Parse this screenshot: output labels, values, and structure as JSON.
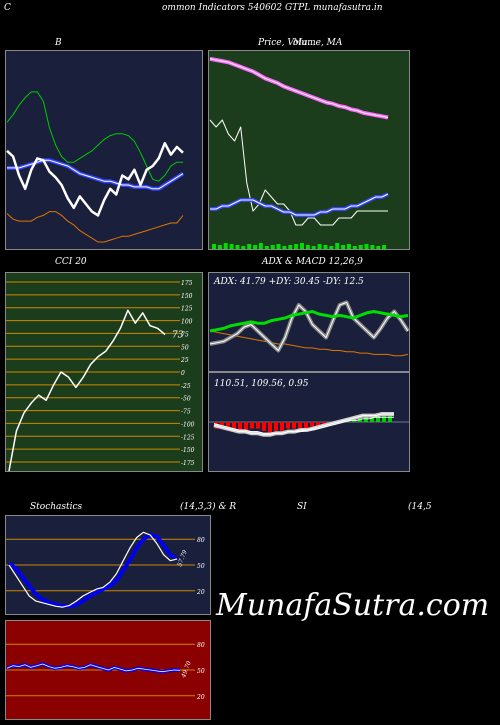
{
  "header": {
    "left": "C",
    "title": "ommon  Indicators 540602  GTPL  munafasutra.in"
  },
  "watermark": "MunafaSutra.com",
  "chart_data": [
    {
      "id": "bollinger",
      "type": "line",
      "title": "B",
      "series": [
        {
          "color": "#00cc00",
          "values": [
            63,
            67,
            72,
            76,
            79,
            79,
            74,
            60,
            51,
            45,
            42,
            42,
            44,
            46,
            48,
            51,
            54,
            56,
            57,
            57,
            56,
            53,
            47,
            40,
            33,
            32,
            35,
            40,
            42,
            42
          ]
        },
        {
          "color": "#ffffff",
          "values": [
            48,
            45,
            35,
            28,
            38,
            44,
            43,
            37,
            34,
            30,
            23,
            18,
            24,
            20,
            16,
            14,
            22,
            28,
            25,
            35,
            33,
            38,
            30,
            38,
            40,
            44,
            52,
            46,
            50,
            47
          ]
        },
        {
          "color": "#3344ff",
          "values": [
            39,
            39,
            39,
            40,
            41,
            42,
            43,
            43,
            42,
            41,
            40,
            38,
            36,
            35,
            34,
            33,
            32,
            32,
            31,
            30,
            30,
            29,
            29,
            29,
            28,
            28,
            30,
            32,
            34,
            36
          ]
        },
        {
          "color": "#dd7700",
          "values": [
            15,
            12,
            11,
            11,
            11,
            13,
            14,
            16,
            16,
            14,
            11,
            9,
            6,
            4,
            2,
            0,
            0,
            1,
            2,
            3,
            3,
            4,
            5,
            6,
            7,
            8,
            9,
            10,
            10,
            14
          ]
        }
      ]
    },
    {
      "id": "price_ma",
      "type": "line",
      "title": "Price,  Volume,  MA",
      "overlay_title": "Ma...",
      "series": [
        {
          "color": "#ff66ff",
          "values": [
            88,
            87,
            86,
            85,
            83,
            81,
            79,
            77,
            74,
            71,
            69,
            67,
            64,
            62,
            60,
            58,
            56,
            54,
            52,
            50,
            49,
            47,
            46,
            44,
            43,
            41,
            40,
            39,
            38,
            37
          ]
        },
        {
          "color": "#ffffff",
          "values": [
            15,
            14,
            15,
            13,
            12,
            14,
            6,
            2,
            3,
            5,
            4,
            3,
            3,
            2,
            0,
            0,
            1,
            1,
            0,
            0,
            0,
            1,
            1,
            1,
            2,
            2,
            2,
            2,
            2,
            2
          ]
        },
        {
          "color": "#3344ff",
          "values": [
            2,
            2,
            3,
            3,
            4,
            5,
            5,
            5,
            4,
            3,
            3,
            2,
            1,
            1,
            0,
            0,
            0,
            0,
            1,
            1,
            2,
            2,
            2,
            3,
            3,
            4,
            5,
            6,
            6,
            7
          ]
        }
      ],
      "volume": [
        5,
        4,
        6,
        5,
        4,
        3,
        5,
        4,
        6,
        3,
        4,
        5,
        3,
        4,
        5,
        6,
        4,
        3,
        5,
        4,
        3,
        6,
        4,
        5,
        3,
        4,
        5,
        4,
        3,
        4
      ]
    },
    {
      "id": "cci",
      "type": "line",
      "title": "CCI 20",
      "last_value": "73",
      "ylim": [
        -175,
        175
      ],
      "y_ticks": [
        "175",
        "150",
        "125",
        "100",
        "75",
        "50",
        "25",
        "0",
        "-25",
        "-50",
        "-75",
        "-100",
        "-125",
        "-150",
        "-175"
      ],
      "tick_values": [
        175,
        150,
        125,
        100,
        75,
        50,
        25,
        0,
        -25,
        -50,
        -75,
        -100,
        -125,
        -150,
        -175
      ],
      "values": [
        -225,
        -115,
        -80,
        -60,
        -45,
        -55,
        -25,
        0,
        -10,
        -30,
        -10,
        15,
        30,
        40,
        60,
        85,
        120,
        95,
        115,
        90,
        85,
        73
      ]
    },
    {
      "id": "adx",
      "type": "line",
      "title": "ADX  & MACD 12,26,9",
      "readout": "ADX: 41.79  +DY: 30.45  -DY: 12.5",
      "series": [
        {
          "color": "#00dd00",
          "values": [
            30,
            31,
            32,
            34,
            35,
            36,
            37,
            36,
            36,
            38,
            39,
            40,
            42,
            43,
            44,
            45,
            43,
            42,
            41,
            42,
            41,
            40,
            42,
            44,
            45,
            44,
            43,
            42,
            41,
            42
          ]
        },
        {
          "color": "#ffffff",
          "values": [
            20,
            21,
            22,
            25,
            28,
            33,
            35,
            30,
            25,
            20,
            15,
            25,
            40,
            50,
            45,
            35,
            30,
            25,
            38,
            50,
            52,
            40,
            35,
            30,
            25,
            32,
            40,
            45,
            38,
            30
          ]
        },
        {
          "color": "#dd7700",
          "values": [
            30,
            29,
            28,
            27,
            26,
            25,
            24,
            23,
            22,
            21,
            20,
            20,
            19,
            18,
            17,
            17,
            16,
            16,
            15,
            15,
            14,
            14,
            13,
            13,
            12,
            12,
            12,
            11,
            11,
            12
          ]
        }
      ]
    },
    {
      "id": "macd",
      "type": "bar",
      "readout": "110.51,  109.56,  0.95",
      "hist": [
        -3,
        -3,
        -3,
        -3,
        -4,
        -4,
        -3,
        -3,
        -4,
        -5,
        -4,
        -4,
        -3,
        -3,
        -3,
        -3,
        -2,
        -2,
        -1,
        -1,
        -1,
        1,
        1,
        2,
        2,
        3,
        3,
        4,
        4,
        4
      ],
      "macd_line": [
        -2,
        -3,
        -4,
        -5,
        -6,
        -6,
        -7,
        -7,
        -8,
        -8,
        -7,
        -7,
        -6,
        -6,
        -5,
        -5,
        -4,
        -3,
        -2,
        -1,
        0,
        1,
        2,
        3,
        4,
        4,
        4,
        5,
        5,
        5
      ],
      "signal_line": [
        -1,
        -2,
        -3,
        -4,
        -5,
        -5,
        -6,
        -6,
        -7,
        -7,
        -7,
        -7,
        -6,
        -6,
        -6,
        -5,
        -5,
        -4,
        -3,
        -2,
        -1,
        0,
        1,
        1,
        2,
        2,
        3,
        3,
        3,
        3
      ]
    },
    {
      "id": "stochastics",
      "type": "line",
      "title": "Stochastics",
      "params": "(14,3,3) & R",
      "last_value": "57.79",
      "ylim": [
        0,
        100
      ],
      "y_ticks": [
        "80",
        "50",
        "20"
      ],
      "tick_values": [
        80,
        50,
        20
      ],
      "k": [
        50,
        38,
        26,
        14,
        8,
        6,
        4,
        2,
        1,
        3,
        8,
        14,
        18,
        22,
        24,
        30,
        40,
        55,
        70,
        82,
        88,
        85,
        75,
        62,
        55,
        57
      ],
      "d": [
        52,
        46,
        36,
        26,
        16,
        10,
        6,
        4,
        2,
        2,
        4,
        8,
        14,
        18,
        22,
        26,
        32,
        44,
        56,
        70,
        80,
        85,
        83,
        73,
        62,
        57
      ]
    },
    {
      "id": "rsi",
      "type": "line",
      "title": "SI",
      "params": "(14,5",
      "last_value": "49.70",
      "ylim": [
        0,
        100
      ],
      "y_ticks": [
        "80",
        "50",
        "20"
      ],
      "tick_values": [
        80,
        50,
        20
      ],
      "values": [
        52,
        55,
        54,
        56,
        53,
        55,
        57,
        54,
        52,
        53,
        55,
        54,
        52,
        53,
        56,
        54,
        52,
        50,
        53,
        51,
        49,
        50,
        52,
        51,
        50,
        49,
        48,
        49,
        50,
        49.7
      ]
    }
  ]
}
